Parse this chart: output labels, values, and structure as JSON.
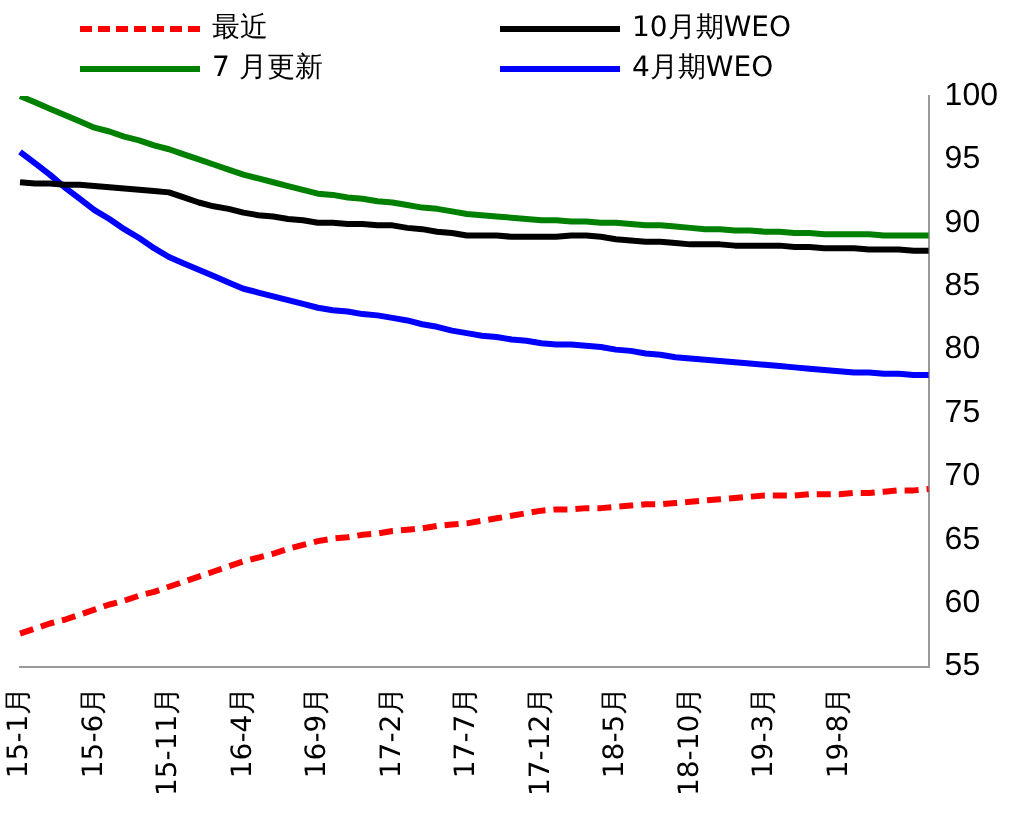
{
  "chart_data": {
    "type": "line",
    "categories": [
      "15-1月",
      null,
      null,
      null,
      null,
      "15-6月",
      null,
      null,
      null,
      null,
      "15-11月",
      null,
      null,
      null,
      null,
      "16-4月",
      null,
      null,
      null,
      null,
      "16-9月",
      null,
      null,
      null,
      null,
      "17-2月",
      null,
      null,
      null,
      null,
      "17-7月",
      null,
      null,
      null,
      null,
      "17-12月",
      null,
      null,
      null,
      null,
      "18-5月",
      null,
      null,
      null,
      null,
      "18-10月",
      null,
      null,
      null,
      null,
      "19-3月",
      null,
      null,
      null,
      null,
      "19-8月",
      null,
      null,
      null,
      null,
      null,
      null
    ],
    "series": [
      {
        "name": "最近",
        "color": "#ff0000",
        "line_style": "dashed",
        "values": [
          57.6,
          58.0,
          58.4,
          58.7,
          59.1,
          59.5,
          59.9,
          60.2,
          60.6,
          60.9,
          61.3,
          61.7,
          62.1,
          62.5,
          62.9,
          63.3,
          63.6,
          63.9,
          64.3,
          64.6,
          64.9,
          65.1,
          65.2,
          65.4,
          65.5,
          65.7,
          65.8,
          65.9,
          66.1,
          66.2,
          66.3,
          66.5,
          66.7,
          66.9,
          67.1,
          67.3,
          67.4,
          67.4,
          67.5,
          67.5,
          67.6,
          67.7,
          67.8,
          67.8,
          67.9,
          68.0,
          68.1,
          68.2,
          68.3,
          68.4,
          68.5,
          68.5,
          68.5,
          68.6,
          68.6,
          68.6,
          68.7,
          68.7,
          68.8,
          68.9,
          68.9,
          69.0
        ]
      },
      {
        "name": "10月期WEO",
        "color": "#000000",
        "line_style": "solid",
        "values": [
          93.2,
          93.1,
          93.1,
          93.0,
          93.0,
          92.9,
          92.8,
          92.7,
          92.6,
          92.5,
          92.4,
          92.0,
          91.6,
          91.3,
          91.1,
          90.8,
          90.6,
          90.5,
          90.3,
          90.2,
          90.0,
          90.0,
          89.9,
          89.9,
          89.8,
          89.8,
          89.6,
          89.5,
          89.3,
          89.2,
          89.0,
          89.0,
          89.0,
          88.9,
          88.9,
          88.9,
          88.9,
          89.0,
          89.0,
          88.9,
          88.7,
          88.6,
          88.5,
          88.5,
          88.4,
          88.3,
          88.3,
          88.3,
          88.2,
          88.2,
          88.2,
          88.2,
          88.1,
          88.1,
          88.0,
          88.0,
          88.0,
          87.9,
          87.9,
          87.9,
          87.8,
          87.8
        ]
      },
      {
        "name": "7 月更新",
        "color": "#008000",
        "line_style": "solid",
        "values": [
          100.0,
          99.5,
          99.0,
          98.5,
          98.0,
          97.5,
          97.2,
          96.8,
          96.5,
          96.1,
          95.8,
          95.4,
          95.0,
          94.6,
          94.2,
          93.8,
          93.5,
          93.2,
          92.9,
          92.6,
          92.3,
          92.2,
          92.0,
          91.9,
          91.7,
          91.6,
          91.4,
          91.2,
          91.1,
          90.9,
          90.7,
          90.6,
          90.5,
          90.4,
          90.3,
          90.2,
          90.2,
          90.1,
          90.1,
          90.0,
          90.0,
          89.9,
          89.8,
          89.8,
          89.7,
          89.6,
          89.5,
          89.5,
          89.4,
          89.4,
          89.3,
          89.3,
          89.2,
          89.2,
          89.1,
          89.1,
          89.1,
          89.1,
          89.0,
          89.0,
          89.0,
          89.0
        ]
      },
      {
        "name": "4月期WEO",
        "color": "#0000ff",
        "line_style": "solid",
        "values": [
          95.6,
          94.7,
          93.8,
          92.8,
          91.9,
          91.0,
          90.3,
          89.5,
          88.8,
          88.0,
          87.3,
          86.8,
          86.3,
          85.8,
          85.3,
          84.8,
          84.5,
          84.2,
          83.9,
          83.6,
          83.3,
          83.1,
          83.0,
          82.8,
          82.7,
          82.5,
          82.3,
          82.0,
          81.8,
          81.5,
          81.3,
          81.1,
          81.0,
          80.8,
          80.7,
          80.5,
          80.4,
          80.4,
          80.3,
          80.2,
          80.0,
          79.9,
          79.7,
          79.6,
          79.4,
          79.3,
          79.2,
          79.1,
          79.0,
          78.9,
          78.8,
          78.7,
          78.6,
          78.5,
          78.4,
          78.3,
          78.2,
          78.2,
          78.1,
          78.1,
          78.0,
          78.0
        ]
      }
    ],
    "ylim": [
      55,
      100
    ],
    "yticks": [
      55,
      60,
      65,
      70,
      75,
      80,
      85,
      90,
      95,
      100
    ],
    "grid": false,
    "legend": "top",
    "marker": "none"
  }
}
